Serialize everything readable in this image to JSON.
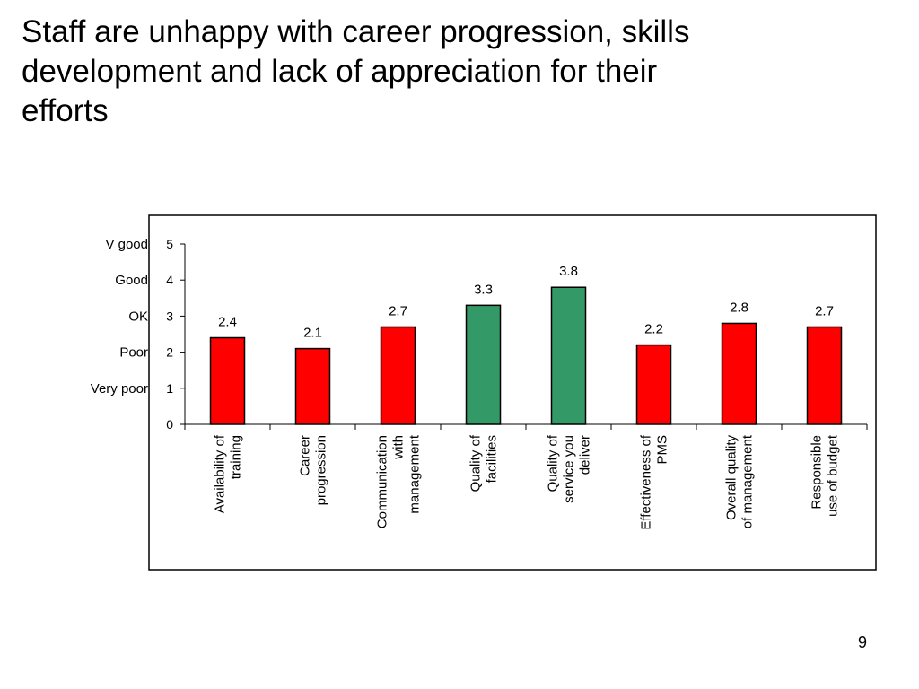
{
  "slide": {
    "title": "Staff are unhappy with career progression, skills\ndevelopment and lack of appreciation for their\nefforts",
    "page_number": "9"
  },
  "colors": {
    "unfavourable": "#ff0000",
    "favourable": "#339966",
    "axis": "#000000"
  },
  "chart_data": {
    "type": "bar",
    "categories": [
      [
        "Availability of",
        "training"
      ],
      [
        "Career",
        "progression"
      ],
      [
        "Communication",
        "with",
        "management"
      ],
      [
        "Quality of",
        "facilities"
      ],
      [
        "Quality of",
        "service you",
        "deliver"
      ],
      [
        "Effectiveness of",
        "PMS"
      ],
      [
        "Overall quality",
        "of management"
      ],
      [
        "Responsible",
        "use of budget"
      ]
    ],
    "values": [
      2.4,
      2.1,
      2.7,
      3.3,
      3.8,
      2.2,
      2.8,
      2.7
    ],
    "data_labels": [
      "2.4",
      "2.1",
      "2.7",
      "3.3",
      "3.8",
      "2.2",
      "2.8",
      "2.7"
    ],
    "bar_colors": [
      "#ff0000",
      "#ff0000",
      "#ff0000",
      "#339966",
      "#339966",
      "#ff0000",
      "#ff0000",
      "#ff0000"
    ],
    "ylim": [
      0,
      5
    ],
    "y_ticks": [
      "0",
      "1",
      "2",
      "3",
      "4",
      "5"
    ],
    "y_scale_labels": [
      "V good",
      "Good",
      "OK",
      "Poor",
      "Very poor"
    ],
    "y_scale_label_values": [
      5,
      4,
      3,
      2,
      1
    ],
    "grid": false,
    "legend": "none"
  }
}
